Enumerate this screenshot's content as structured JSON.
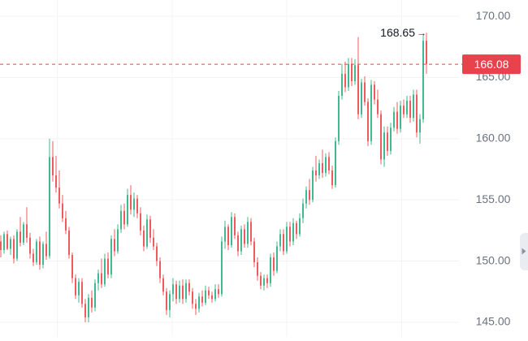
{
  "chart_data": {
    "type": "candlestick",
    "y_ticks": [
      "170.00",
      "165.00",
      "160.00",
      "155.00",
      "150.00",
      "145.00"
    ],
    "y_tick_values": [
      170,
      165,
      160,
      155,
      150,
      145
    ],
    "ylim": [
      143.8,
      171.2
    ],
    "last_price": 166.08,
    "last_price_label": "166.08",
    "high_marker": {
      "value": 168.65,
      "label": "168.65",
      "arrow": "→"
    },
    "colors": {
      "up": "#3fb98d",
      "down": "#ee5a61",
      "price_line": "#e8424d",
      "axis_text": "#6b7280",
      "grid": "#f1f3f6"
    },
    "series": [
      [
        151.6,
        152.1,
        150.3,
        150.9
      ],
      [
        150.9,
        152.4,
        150.6,
        152.2
      ],
      [
        152.2,
        152.5,
        150.9,
        151.0
      ],
      [
        151.0,
        152.0,
        150.5,
        151.8
      ],
      [
        151.8,
        152.1,
        149.8,
        150.2
      ],
      [
        150.2,
        152.6,
        150.0,
        152.4
      ],
      [
        152.4,
        153.6,
        151.2,
        151.5
      ],
      [
        151.5,
        153.2,
        151.3,
        153.0
      ],
      [
        153.0,
        154.4,
        151.5,
        151.9
      ],
      [
        151.9,
        152.3,
        150.2,
        150.6
      ],
      [
        150.6,
        151.0,
        149.6,
        149.9
      ],
      [
        149.9,
        151.8,
        149.7,
        151.6
      ],
      [
        151.6,
        152.0,
        149.3,
        149.7
      ],
      [
        149.7,
        151.6,
        149.4,
        151.4
      ],
      [
        151.4,
        152.4,
        150.1,
        150.4
      ],
      [
        150.4,
        160.0,
        150.2,
        158.5
      ],
      [
        158.5,
        159.8,
        156.5,
        157.0
      ],
      [
        157.0,
        158.6,
        155.6,
        156.0
      ],
      [
        156.0,
        157.4,
        154.3,
        154.7
      ],
      [
        154.7,
        155.4,
        153.2,
        153.5
      ],
      [
        153.5,
        154.1,
        152.2,
        152.5
      ],
      [
        152.5,
        152.8,
        150.2,
        150.5
      ],
      [
        150.5,
        150.7,
        148.2,
        148.6
      ],
      [
        148.6,
        148.9,
        146.9,
        147.2
      ],
      [
        147.2,
        148.6,
        146.6,
        148.3
      ],
      [
        148.3,
        148.6,
        146.2,
        146.5
      ],
      [
        146.5,
        146.9,
        145.0,
        145.4
      ],
      [
        145.4,
        147.3,
        145.0,
        147.0
      ],
      [
        147.0,
        147.6,
        145.8,
        146.2
      ],
      [
        146.2,
        148.5,
        145.9,
        148.2
      ],
      [
        148.2,
        149.3,
        147.6,
        149.0
      ],
      [
        149.0,
        150.2,
        147.8,
        148.1
      ],
      [
        148.1,
        150.6,
        147.9,
        150.2
      ],
      [
        150.2,
        150.7,
        148.6,
        148.9
      ],
      [
        148.9,
        152.1,
        148.6,
        151.8
      ],
      [
        151.8,
        152.6,
        150.4,
        150.8
      ],
      [
        150.8,
        153.0,
        150.6,
        152.6
      ],
      [
        152.6,
        154.6,
        152.3,
        154.1
      ],
      [
        154.1,
        154.7,
        152.6,
        153.0
      ],
      [
        153.0,
        155.9,
        152.8,
        155.4
      ],
      [
        155.4,
        156.2,
        153.8,
        154.2
      ],
      [
        154.2,
        155.6,
        153.6,
        155.1
      ],
      [
        155.1,
        155.4,
        153.5,
        153.9
      ],
      [
        153.9,
        154.4,
        152.1,
        152.5
      ],
      [
        152.5,
        152.9,
        150.8,
        151.2
      ],
      [
        151.2,
        153.8,
        151.0,
        153.4
      ],
      [
        153.4,
        153.7,
        151.5,
        151.9
      ],
      [
        151.9,
        152.6,
        150.9,
        151.2
      ],
      [
        151.2,
        151.5,
        149.6,
        150.0
      ],
      [
        150.0,
        150.3,
        148.2,
        148.6
      ],
      [
        148.6,
        148.9,
        147.2,
        147.5
      ],
      [
        147.5,
        147.8,
        145.6,
        146.0
      ],
      [
        146.0,
        147.6,
        145.4,
        147.3
      ],
      [
        147.3,
        148.6,
        146.7,
        148.1
      ],
      [
        148.1,
        148.4,
        146.5,
        146.9
      ],
      [
        146.9,
        148.4,
        146.6,
        148.0
      ],
      [
        148.0,
        148.5,
        146.5,
        146.9
      ],
      [
        146.9,
        148.5,
        146.6,
        148.2
      ],
      [
        148.2,
        148.5,
        147.2,
        147.5
      ],
      [
        147.5,
        147.8,
        146.1,
        146.5
      ],
      [
        146.5,
        146.9,
        145.6,
        146.1
      ],
      [
        146.1,
        147.4,
        145.8,
        147.1
      ],
      [
        147.1,
        147.6,
        146.3,
        146.6
      ],
      [
        146.6,
        148.0,
        146.4,
        147.6
      ],
      [
        147.6,
        147.9,
        146.9,
        147.2
      ],
      [
        147.2,
        147.5,
        146.6,
        146.9
      ],
      [
        146.9,
        148.1,
        146.7,
        147.7
      ],
      [
        147.7,
        148.1,
        147.0,
        147.3
      ],
      [
        147.3,
        152.0,
        147.1,
        151.6
      ],
      [
        151.6,
        153.3,
        151.0,
        152.8
      ],
      [
        152.8,
        153.0,
        150.9,
        151.3
      ],
      [
        151.3,
        154.0,
        151.1,
        153.6
      ],
      [
        153.6,
        153.9,
        151.8,
        152.1
      ],
      [
        152.1,
        152.4,
        150.4,
        150.8
      ],
      [
        150.8,
        152.9,
        150.5,
        152.6
      ],
      [
        152.6,
        153.0,
        151.1,
        151.4
      ],
      [
        151.4,
        153.6,
        151.1,
        153.2
      ],
      [
        153.2,
        153.5,
        151.3,
        151.6
      ],
      [
        151.6,
        151.9,
        149.5,
        149.9
      ],
      [
        149.9,
        150.3,
        148.4,
        148.8
      ],
      [
        148.8,
        149.1,
        147.7,
        148.0
      ],
      [
        148.0,
        148.9,
        147.6,
        148.6
      ],
      [
        148.6,
        148.9,
        147.8,
        148.2
      ],
      [
        148.2,
        150.6,
        147.9,
        150.3
      ],
      [
        150.3,
        150.7,
        148.8,
        149.2
      ],
      [
        149.2,
        151.6,
        149.0,
        151.2
      ],
      [
        151.2,
        152.6,
        150.8,
        152.2
      ],
      [
        152.2,
        152.6,
        150.5,
        150.8
      ],
      [
        150.8,
        153.2,
        150.6,
        152.8
      ],
      [
        152.8,
        153.2,
        151.2,
        151.6
      ],
      [
        151.6,
        153.5,
        151.3,
        153.1
      ],
      [
        153.1,
        153.3,
        151.8,
        152.2
      ],
      [
        152.2,
        153.9,
        152.0,
        153.5
      ],
      [
        153.5,
        155.1,
        153.1,
        154.7
      ],
      [
        154.7,
        156.1,
        154.3,
        155.8
      ],
      [
        155.8,
        156.7,
        154.6,
        155.0
      ],
      [
        155.0,
        157.7,
        154.8,
        157.4
      ],
      [
        157.4,
        158.6,
        156.5,
        157.0
      ],
      [
        157.0,
        158.3,
        156.7,
        158.0
      ],
      [
        158.0,
        159.1,
        156.8,
        157.2
      ],
      [
        157.2,
        158.8,
        156.9,
        158.5
      ],
      [
        158.5,
        158.9,
        157.1,
        157.4
      ],
      [
        157.4,
        157.8,
        155.9,
        156.2
      ],
      [
        156.2,
        160.1,
        156.0,
        159.8
      ],
      [
        159.8,
        163.9,
        159.5,
        163.5
      ],
      [
        163.5,
        166.1,
        163.2,
        165.3
      ],
      [
        165.3,
        166.3,
        163.8,
        164.2
      ],
      [
        164.2,
        166.6,
        163.9,
        166.1
      ],
      [
        166.1,
        166.6,
        164.3,
        164.7
      ],
      [
        164.7,
        166.5,
        164.4,
        166.0
      ],
      [
        166.0,
        168.3,
        161.6,
        162.0
      ],
      [
        162.0,
        164.9,
        161.7,
        164.6
      ],
      [
        164.6,
        165.1,
        162.7,
        163.0
      ],
      [
        163.0,
        163.3,
        159.4,
        159.8
      ],
      [
        159.8,
        164.8,
        159.5,
        164.4
      ],
      [
        164.4,
        164.7,
        162.8,
        163.2
      ],
      [
        163.2,
        164.0,
        161.7,
        162.0
      ],
      [
        162.0,
        162.3,
        157.9,
        158.3
      ],
      [
        158.3,
        161.0,
        157.7,
        160.5
      ],
      [
        160.5,
        161.0,
        158.6,
        159.0
      ],
      [
        159.0,
        161.3,
        158.7,
        160.9
      ],
      [
        160.9,
        162.6,
        160.6,
        162.2
      ],
      [
        162.2,
        163.0,
        160.4,
        160.8
      ],
      [
        160.8,
        163.1,
        160.5,
        162.7
      ],
      [
        162.7,
        163.2,
        161.7,
        162.0
      ],
      [
        162.0,
        163.5,
        161.7,
        163.1
      ],
      [
        163.1,
        163.5,
        161.3,
        161.7
      ],
      [
        161.7,
        164.0,
        161.4,
        163.6
      ],
      [
        163.6,
        164.0,
        160.1,
        160.5
      ],
      [
        160.5,
        162.0,
        159.6,
        161.6
      ],
      [
        161.6,
        168.4,
        161.3,
        168.0
      ],
      [
        168.0,
        168.65,
        165.3,
        166.08
      ]
    ]
  }
}
